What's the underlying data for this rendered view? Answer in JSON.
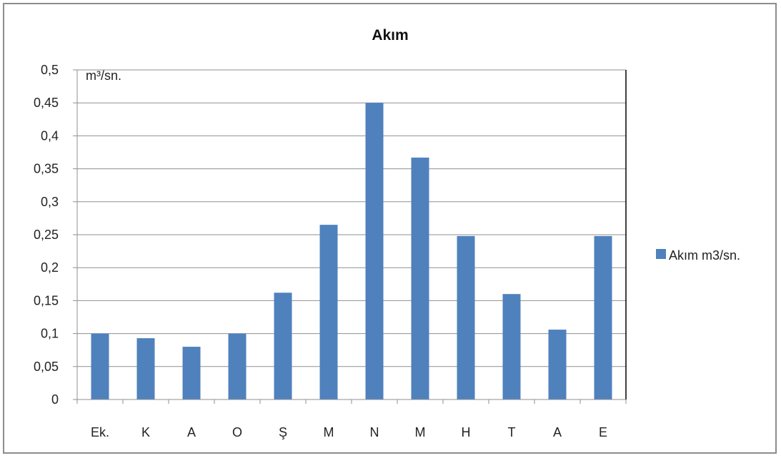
{
  "chart_data": {
    "type": "bar",
    "title": "Akım",
    "ylabel": "m³/sn.",
    "xlabel": "",
    "categories": [
      "Ek.",
      "K",
      "A",
      "O",
      "Ş",
      "M",
      "N",
      "M",
      "H",
      "T",
      "A",
      "E"
    ],
    "series": [
      {
        "name": "Akım m3/sn.",
        "color": "#4f81bd",
        "values": [
          0.1,
          0.093,
          0.08,
          0.1,
          0.162,
          0.265,
          0.45,
          0.367,
          0.248,
          0.16,
          0.106,
          0.248
        ]
      }
    ],
    "ylim": [
      0,
      0.5
    ],
    "yticks": [
      "0",
      "0,05",
      "0,1",
      "0,15",
      "0,2",
      "0,25",
      "0,3",
      "0,35",
      "0,4",
      "0,45",
      "0,5"
    ],
    "grid": true,
    "legend_position": "right"
  }
}
